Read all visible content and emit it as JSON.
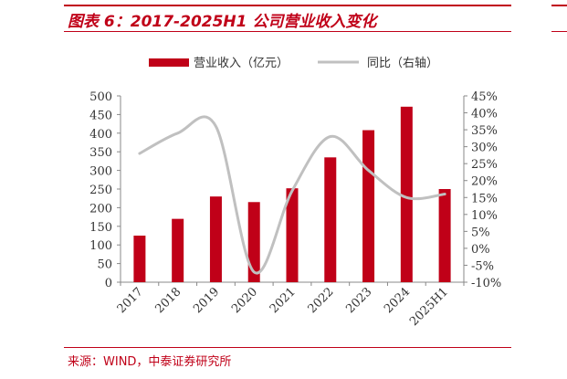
{
  "title": "图表 6：2017-2025H1 公司营业收入变化",
  "source": "来源：WIND，中泰证券研究所",
  "colors": {
    "accent": "#c00018",
    "bar": "#c00018",
    "line": "#c0c0c0"
  },
  "chart_data": {
    "type": "bar",
    "categories": [
      "2017",
      "2018",
      "2019",
      "2020",
      "2021",
      "2022",
      "2023",
      "2024",
      "2025H1"
    ],
    "series": [
      {
        "name": "营业收入（亿元）",
        "type": "bar",
        "axis": "left",
        "values": [
          125,
          170,
          230,
          215,
          252,
          335,
          408,
          471,
          250
        ]
      },
      {
        "name": "同比（右轴）",
        "type": "line",
        "axis": "right",
        "smooth": true,
        "values": [
          28,
          34,
          36,
          -7,
          17,
          33,
          23,
          15,
          16
        ]
      }
    ],
    "y_left": {
      "min": 0,
      "max": 500,
      "ticks": [
        "0",
        "50",
        "100",
        "150",
        "200",
        "250",
        "300",
        "350",
        "400",
        "450",
        "500"
      ]
    },
    "y_right": {
      "min": -10,
      "max": 45,
      "ticks": [
        "-10%",
        "-5%",
        "0%",
        "5%",
        "10%",
        "15%",
        "20%",
        "25%",
        "30%",
        "35%",
        "40%",
        "45%"
      ]
    },
    "legend_position": "top-center",
    "grid": false
  }
}
